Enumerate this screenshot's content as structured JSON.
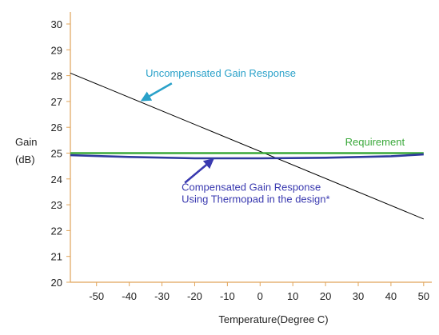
{
  "chart_data": {
    "type": "line",
    "xlabel": "Temperature(Degree C)",
    "ylabel_lines": [
      "Gain",
      "(dB)"
    ],
    "xlim": [
      -58,
      52
    ],
    "ylim": [
      20,
      30
    ],
    "x_ticks": [
      -50,
      -40,
      -30,
      -20,
      -10,
      0,
      10,
      20,
      30,
      40,
      50
    ],
    "y_ticks": [
      20,
      21,
      22,
      23,
      24,
      25,
      26,
      27,
      28,
      29,
      30
    ],
    "grid": false,
    "series": [
      {
        "key": "uncompensated",
        "color": "#000000",
        "x": [
          -58,
          50
        ],
        "y": [
          28.1,
          22.45
        ]
      },
      {
        "key": "requirement",
        "color": "#3aa83a",
        "x": [
          -58,
          50
        ],
        "y": [
          25.0,
          25.0
        ]
      },
      {
        "key": "compensated",
        "color": "#2f3a9e",
        "x": [
          -58,
          -40,
          -20,
          0,
          20,
          40,
          50
        ],
        "y": [
          24.92,
          24.85,
          24.8,
          24.8,
          24.82,
          24.88,
          24.95
        ]
      }
    ],
    "annotations": [
      {
        "key": "uncompensated_label",
        "lines": [
          "Uncompensated Gain Response"
        ],
        "color": "#2aa1c9",
        "text_at": [
          -35,
          27.95
        ],
        "arrow_from": [
          -27,
          27.7
        ],
        "arrow_to": [
          -36,
          27.05
        ]
      },
      {
        "key": "requirement_label",
        "lines": [
          "Requirement"
        ],
        "color": "#3aa83a",
        "text_at": [
          26,
          25.3
        ]
      },
      {
        "key": "compensated_label",
        "lines": [
          "Compensated Gain Response",
          "Using Thermopad in the design*"
        ],
        "color": "#3a3ab0",
        "text_at": [
          -24,
          23.55
        ],
        "arrow_from": [
          -23,
          23.85
        ],
        "arrow_to": [
          -14.5,
          24.75
        ]
      }
    ]
  }
}
